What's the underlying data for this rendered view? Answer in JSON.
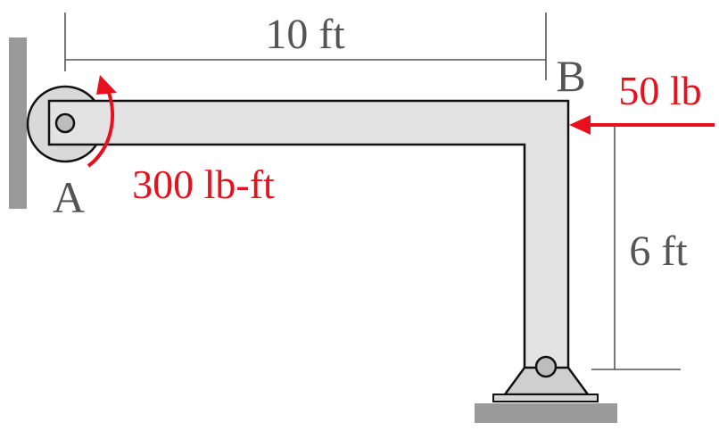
{
  "diagram": {
    "dimensions": {
      "horizontal": "10 ft",
      "vertical": "6 ft"
    },
    "points": {
      "a": "A",
      "b": "B"
    },
    "loads": {
      "force": "50 lb",
      "moment": "300 lb-ft"
    },
    "colors": {
      "load": "#e8101c",
      "dimension": "#555555",
      "member_fill": "#e3e3e3",
      "wall": "#9a9a9a",
      "outline": "#111111"
    }
  }
}
